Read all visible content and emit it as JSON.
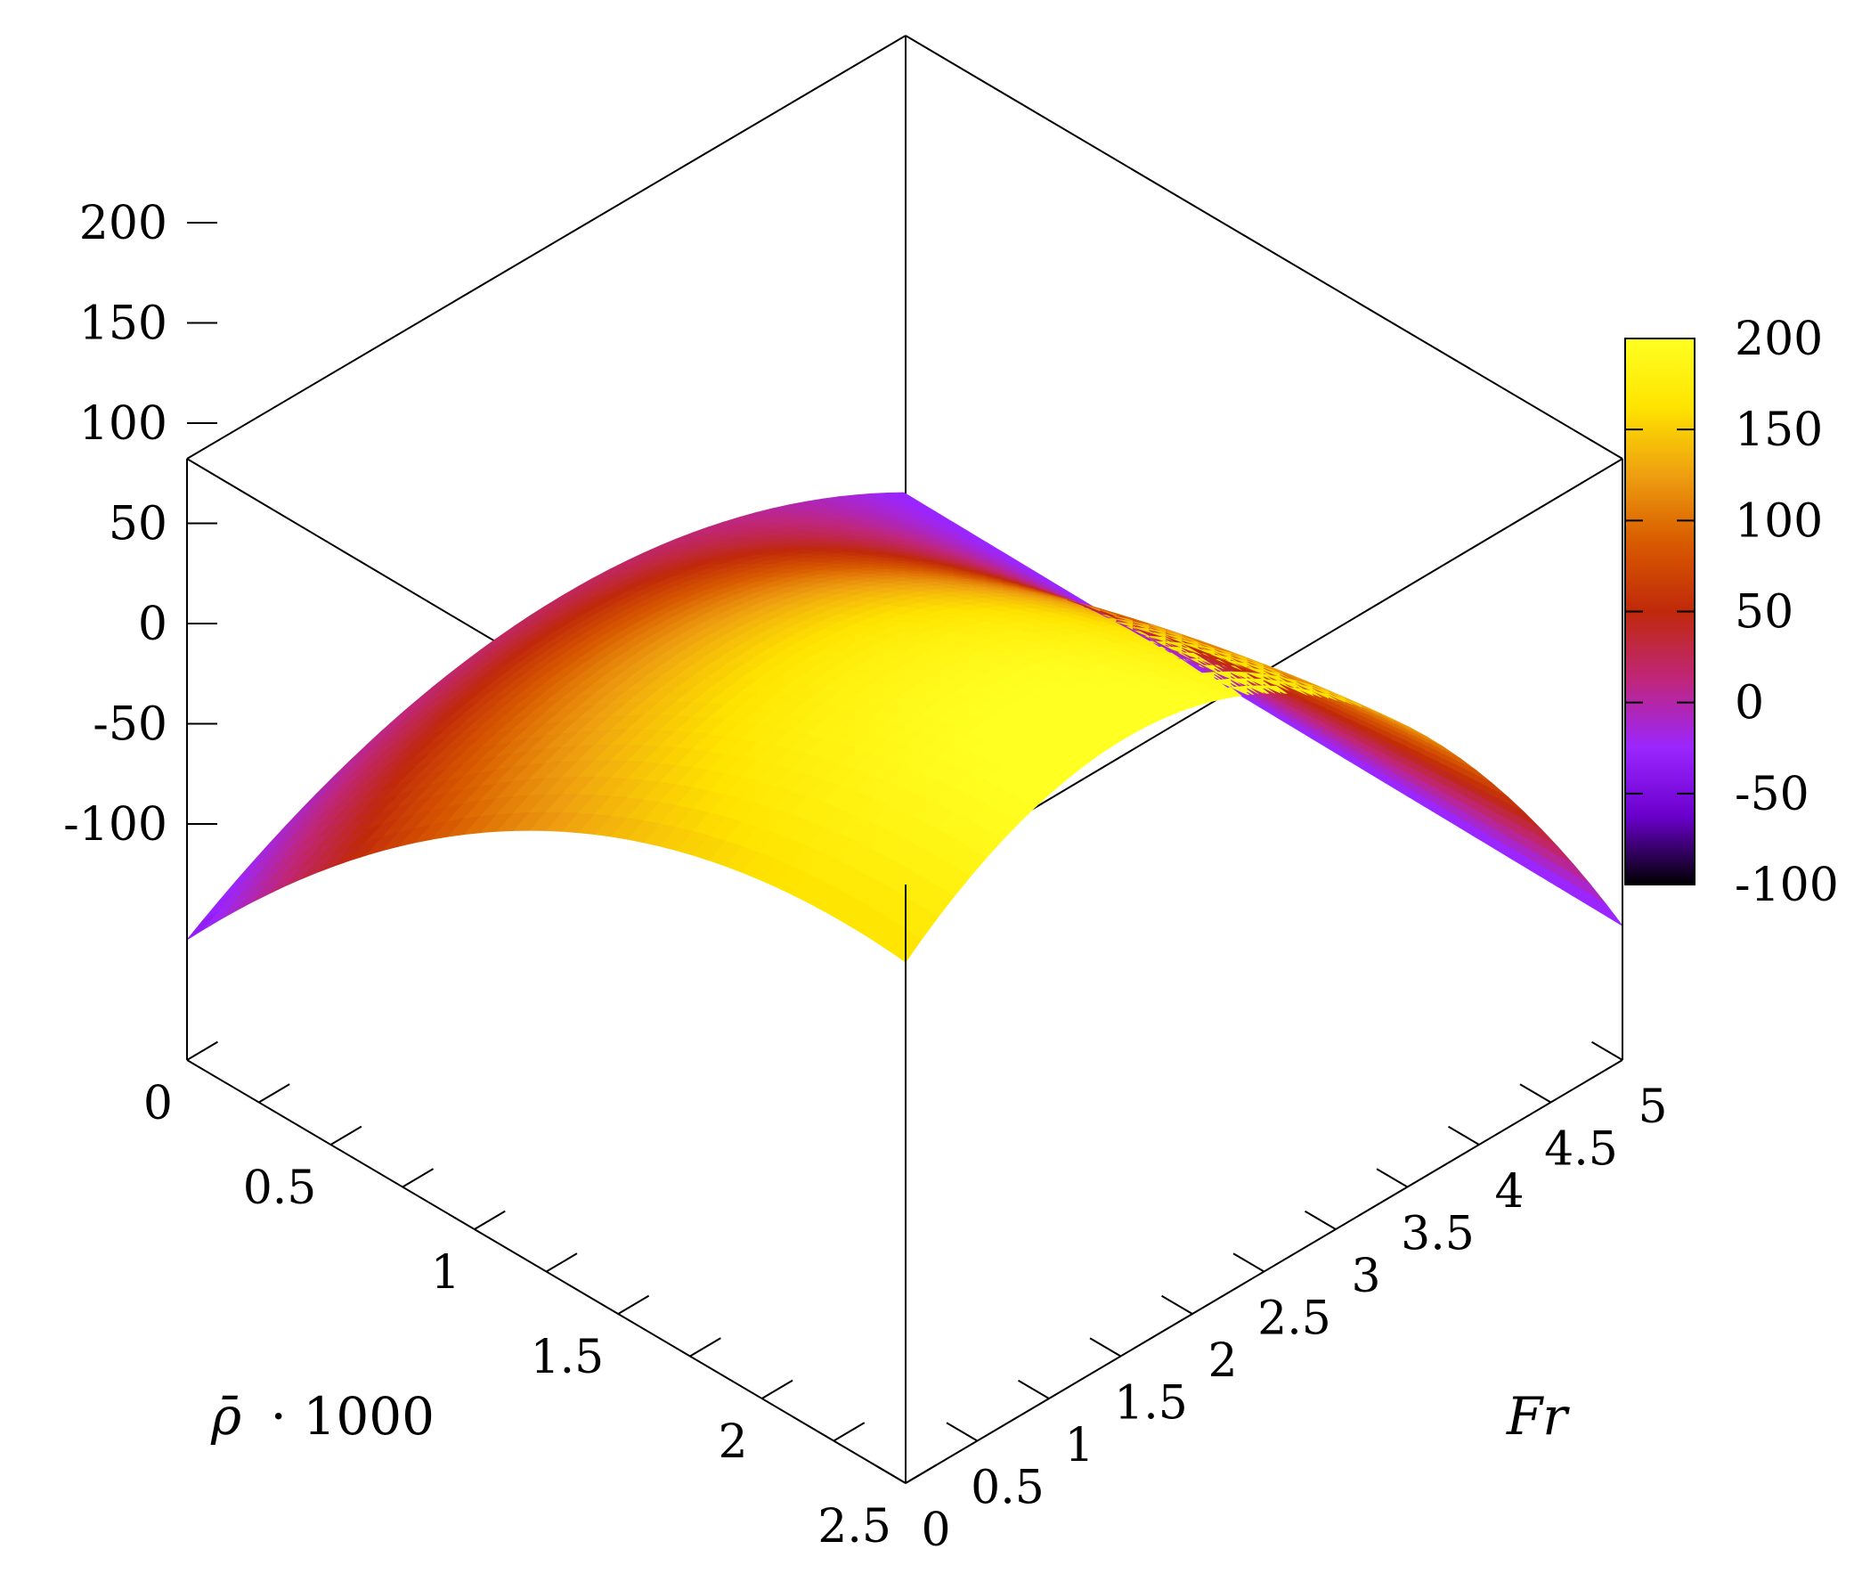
{
  "chart_data": {
    "type": "surface",
    "title": "",
    "x_axis": {
      "label": "Fr",
      "range": [
        0,
        5
      ],
      "ticks": [
        0,
        0.5,
        1,
        1.5,
        2,
        2.5,
        3,
        3.5,
        4,
        4.5,
        5
      ],
      "tick_labels": [
        "0",
        "0.5",
        "1",
        "1.5",
        "2",
        "2.5",
        "3",
        "3.5",
        "4",
        "4.5",
        "5"
      ]
    },
    "y_axis": {
      "label_math": "ρ̄",
      "label_rest": "· 1000",
      "range": [
        0,
        2.5
      ],
      "ticks": [
        0,
        0.5,
        1,
        1.5,
        2,
        2.5
      ],
      "tick_labels": [
        "0",
        "0.5",
        "1",
        "1.5",
        "2",
        "2.5"
      ]
    },
    "z_axis": {
      "label": "",
      "range": [
        -100,
        200
      ],
      "ticks": [
        -100,
        -50,
        0,
        50,
        100,
        150,
        200
      ],
      "tick_labels": [
        "-100",
        "-50",
        "0",
        "50",
        "100",
        "150",
        "200"
      ]
    },
    "colorbar": {
      "range": [
        -100,
        200
      ],
      "ticks": [
        -100,
        -50,
        0,
        50,
        100,
        150,
        200
      ],
      "tick_labels": [
        "-100",
        "-50",
        "0",
        "50",
        "100",
        "150",
        "200"
      ],
      "palette": [
        "#000000",
        "#6a00cc",
        "#9b26ff",
        "#c0267a",
        "#c0290a",
        "#d85a00",
        "#ee9f10",
        "#ffe400",
        "#ffff22"
      ]
    },
    "surface": {
      "z_at_corners": [
        {
          "Fr": 0,
          "rho": 0,
          "z": -40
        },
        {
          "Fr": 5,
          "rho": 0,
          "z": -28
        },
        {
          "Fr": 0,
          "rho": 2.5,
          "z": 160
        },
        {
          "Fr": 5,
          "rho": 2.5,
          "z": -33
        }
      ],
      "z_peak": 178,
      "shape": "concave dome, highest near rho = 2.5 and Fr = 0.5, lowest along Fr = 5"
    },
    "grid": false,
    "legend": "none"
  }
}
